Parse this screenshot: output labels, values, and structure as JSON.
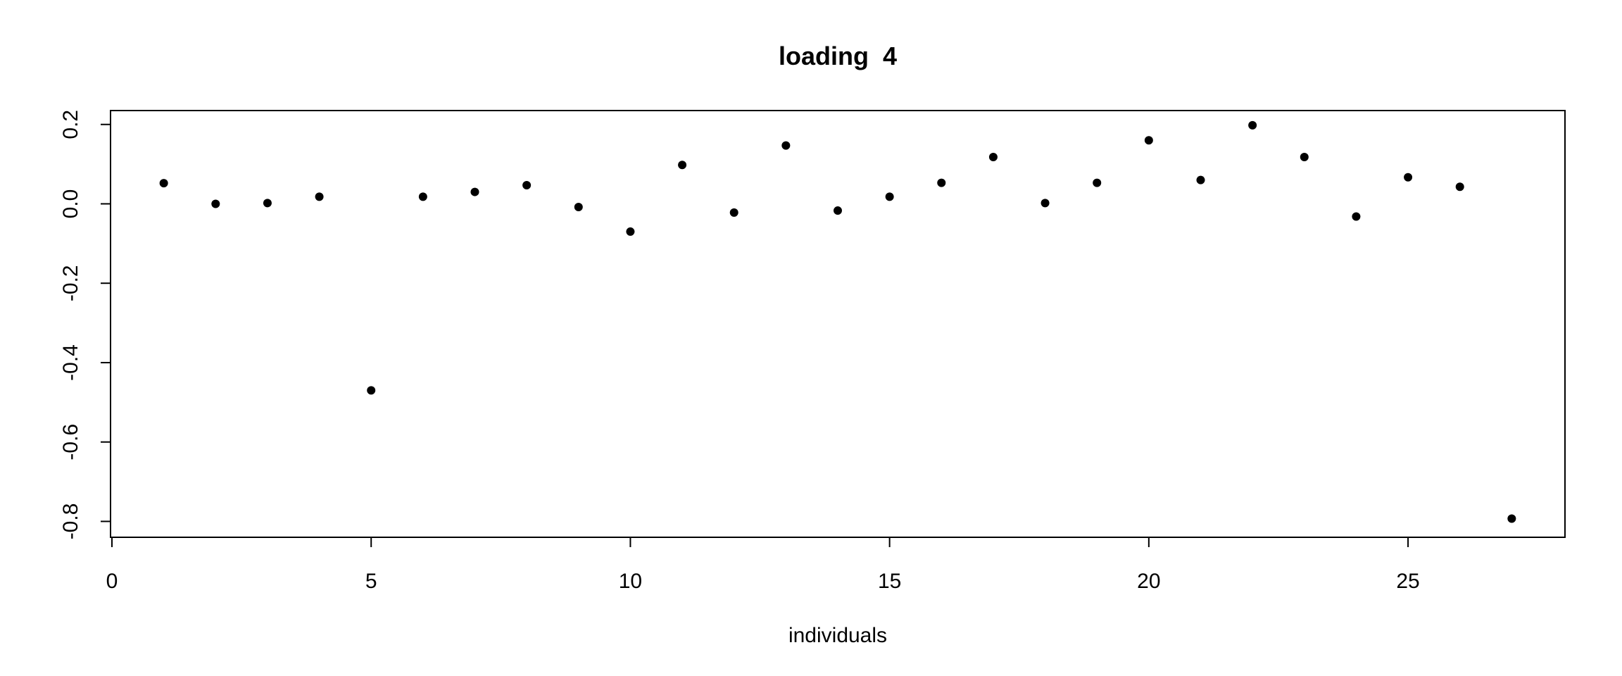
{
  "chart_data": {
    "type": "scatter",
    "title": "loading  4",
    "xlabel": "individuals",
    "ylabel": "",
    "xlim": [
      0,
      28
    ],
    "ylim": [
      -0.84,
      0.235
    ],
    "x_ticks": [
      0,
      5,
      10,
      15,
      20,
      25
    ],
    "y_ticks": [
      -0.8,
      -0.6,
      -0.4,
      -0.2,
      0.0,
      0.2
    ],
    "x_tick_labels": [
      "0",
      "5",
      "10",
      "15",
      "20",
      "25"
    ],
    "y_tick_labels": [
      "-0.8",
      "-0.6",
      "-0.4",
      "-0.2",
      "0.0",
      "0.2"
    ],
    "grid": false,
    "series": [
      {
        "x": [
          1,
          2,
          3,
          4,
          5,
          6,
          7,
          8,
          9,
          10,
          11,
          12,
          13,
          14,
          15,
          16,
          17,
          18,
          19,
          20,
          21,
          22,
          23,
          24,
          25,
          26,
          27
        ],
        "y": [
          0.052,
          0.0,
          0.002,
          0.018,
          -0.47,
          0.018,
          0.03,
          0.047,
          -0.008,
          -0.07,
          0.098,
          -0.022,
          0.147,
          -0.017,
          0.018,
          0.053,
          0.118,
          0.002,
          0.053,
          0.16,
          0.06,
          0.198,
          0.118,
          -0.032,
          0.067,
          0.043,
          -0.793
        ]
      }
    ]
  }
}
